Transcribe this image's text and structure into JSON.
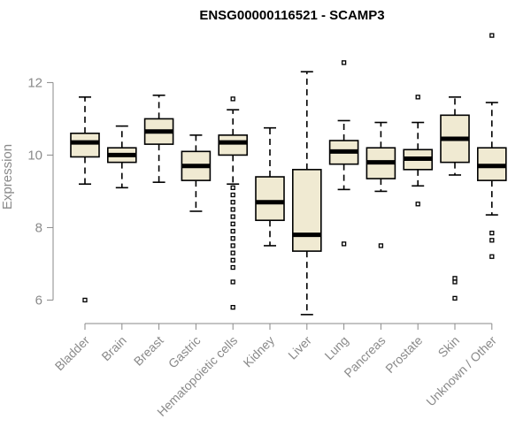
{
  "chart_data": {
    "type": "box",
    "title": "ENSG00000116521 - SCAMP3",
    "xlabel": "",
    "ylabel": "Expression",
    "ylim": [
      5.45,
      13.4
    ],
    "yticks": [
      6,
      8,
      10,
      12
    ],
    "categories": [
      "Bladder",
      "Brain",
      "Breast",
      "Gastric",
      "Hematopoietic cells",
      "Kidney",
      "Liver",
      "Lung",
      "Pancreas",
      "Prostate",
      "Skin",
      "Unknown / Other"
    ],
    "boxes": [
      {
        "whisker_low": 9.2,
        "q1": 9.95,
        "median": 10.35,
        "q3": 10.6,
        "whisker_high": 11.6,
        "outliers": [
          6.0
        ]
      },
      {
        "whisker_low": 9.1,
        "q1": 9.8,
        "median": 10.0,
        "q3": 10.2,
        "whisker_high": 10.8,
        "outliers": []
      },
      {
        "whisker_low": 9.25,
        "q1": 10.3,
        "median": 10.65,
        "q3": 11.0,
        "whisker_high": 11.65,
        "outliers": []
      },
      {
        "whisker_low": 8.45,
        "q1": 9.3,
        "median": 9.7,
        "q3": 10.1,
        "whisker_high": 10.55,
        "outliers": []
      },
      {
        "whisker_low": 9.2,
        "q1": 10.0,
        "median": 10.35,
        "q3": 10.55,
        "whisker_high": 11.25,
        "outliers": [
          11.55,
          9.1,
          8.9,
          8.7,
          8.5,
          8.3,
          8.1,
          7.9,
          7.7,
          7.5,
          7.3,
          7.1,
          6.9,
          6.5,
          5.8
        ]
      },
      {
        "whisker_low": 7.5,
        "q1": 8.2,
        "median": 8.7,
        "q3": 9.4,
        "whisker_high": 10.75,
        "outliers": []
      },
      {
        "whisker_low": 5.6,
        "q1": 7.35,
        "median": 7.8,
        "q3": 9.6,
        "whisker_high": 12.3,
        "outliers": []
      },
      {
        "whisker_low": 9.05,
        "q1": 9.75,
        "median": 10.1,
        "q3": 10.4,
        "whisker_high": 10.95,
        "outliers": [
          12.55,
          7.55
        ]
      },
      {
        "whisker_low": 9.0,
        "q1": 9.35,
        "median": 9.8,
        "q3": 10.2,
        "whisker_high": 10.9,
        "outliers": [
          7.5
        ]
      },
      {
        "whisker_low": 9.15,
        "q1": 9.6,
        "median": 9.9,
        "q3": 10.15,
        "whisker_high": 10.9,
        "outliers": [
          11.6,
          8.65
        ]
      },
      {
        "whisker_low": 9.45,
        "q1": 9.8,
        "median": 10.45,
        "q3": 11.1,
        "whisker_high": 11.6,
        "outliers": [
          6.6,
          6.5,
          6.05
        ]
      },
      {
        "whisker_low": 8.35,
        "q1": 9.3,
        "median": 9.7,
        "q3": 10.2,
        "whisker_high": 11.45,
        "outliers": [
          13.3,
          7.85,
          7.65,
          7.2
        ]
      }
    ],
    "colors": {
      "box_fill": "#f0ead2",
      "box_stroke": "#000000",
      "median": "#000000",
      "axis": "#8a8a8a"
    }
  }
}
